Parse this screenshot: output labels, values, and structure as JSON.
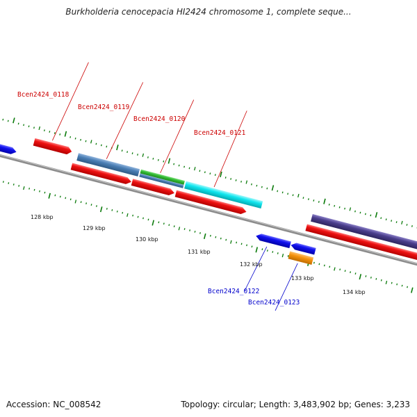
{
  "title": "Burkholderia cenocepacia HI2424 chromosome 1, complete seque...",
  "footer": {
    "accession": "Accession: NC_008542",
    "stats": "Topology: circular; Length: 3,483,902 bp; Genes: 3,233"
  },
  "map": {
    "ticks": [
      {
        "label": "128 kbp"
      },
      {
        "label": "129 kbp"
      },
      {
        "label": "130 kbp"
      },
      {
        "label": "131 kbp"
      },
      {
        "label": "132 kbp"
      },
      {
        "label": "133 kbp"
      },
      {
        "label": "134 kbp"
      }
    ],
    "gene_labels": [
      {
        "text": "Bcen2424_0118",
        "strand": "forward",
        "color": "#cc0000"
      },
      {
        "text": "Bcen2424_0119",
        "strand": "forward",
        "color": "#cc0000"
      },
      {
        "text": "Bcen2424_0120",
        "strand": "forward",
        "color": "#cc0000"
      },
      {
        "text": "Bcen2424_0121",
        "strand": "forward",
        "color": "#cc0000"
      },
      {
        "text": "Bcen2424_0122",
        "strand": "reverse",
        "color": "#0000cc"
      },
      {
        "text": "Bcen2424_0123",
        "strand": "reverse",
        "color": "#0000cc"
      }
    ],
    "colors": {
      "cds": "#ee1111",
      "reverse_cds": "#1111ee",
      "steel": "#4b7fb5",
      "green": "#33bb33",
      "cyan": "#11e6ee",
      "purple": "#4a3e8c",
      "orange": "#f5930f",
      "backbone": "#8c8c8c",
      "tick": "#0a7a0a"
    }
  }
}
